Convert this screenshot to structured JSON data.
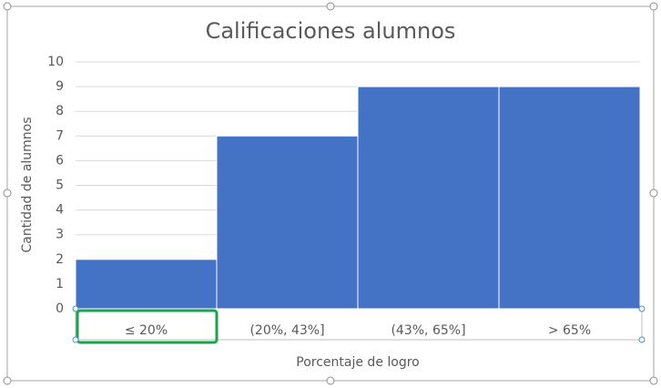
{
  "chart_data": {
    "type": "bar",
    "title": "Calificaciones alumnos",
    "x_label": "Porcentaje de logro",
    "y_label": "Cantidad de alumnos",
    "categories": [
      "≤ 20%",
      "(20%, 43%]",
      "(43%, 65%]",
      "> 65%"
    ],
    "values": [
      2,
      7,
      9,
      9
    ],
    "color": "#4472c4",
    "ylim": [
      0,
      10
    ],
    "yticks": [
      0,
      1,
      2,
      3,
      4,
      5,
      6,
      7,
      8,
      9,
      10
    ],
    "grid": true
  }
}
